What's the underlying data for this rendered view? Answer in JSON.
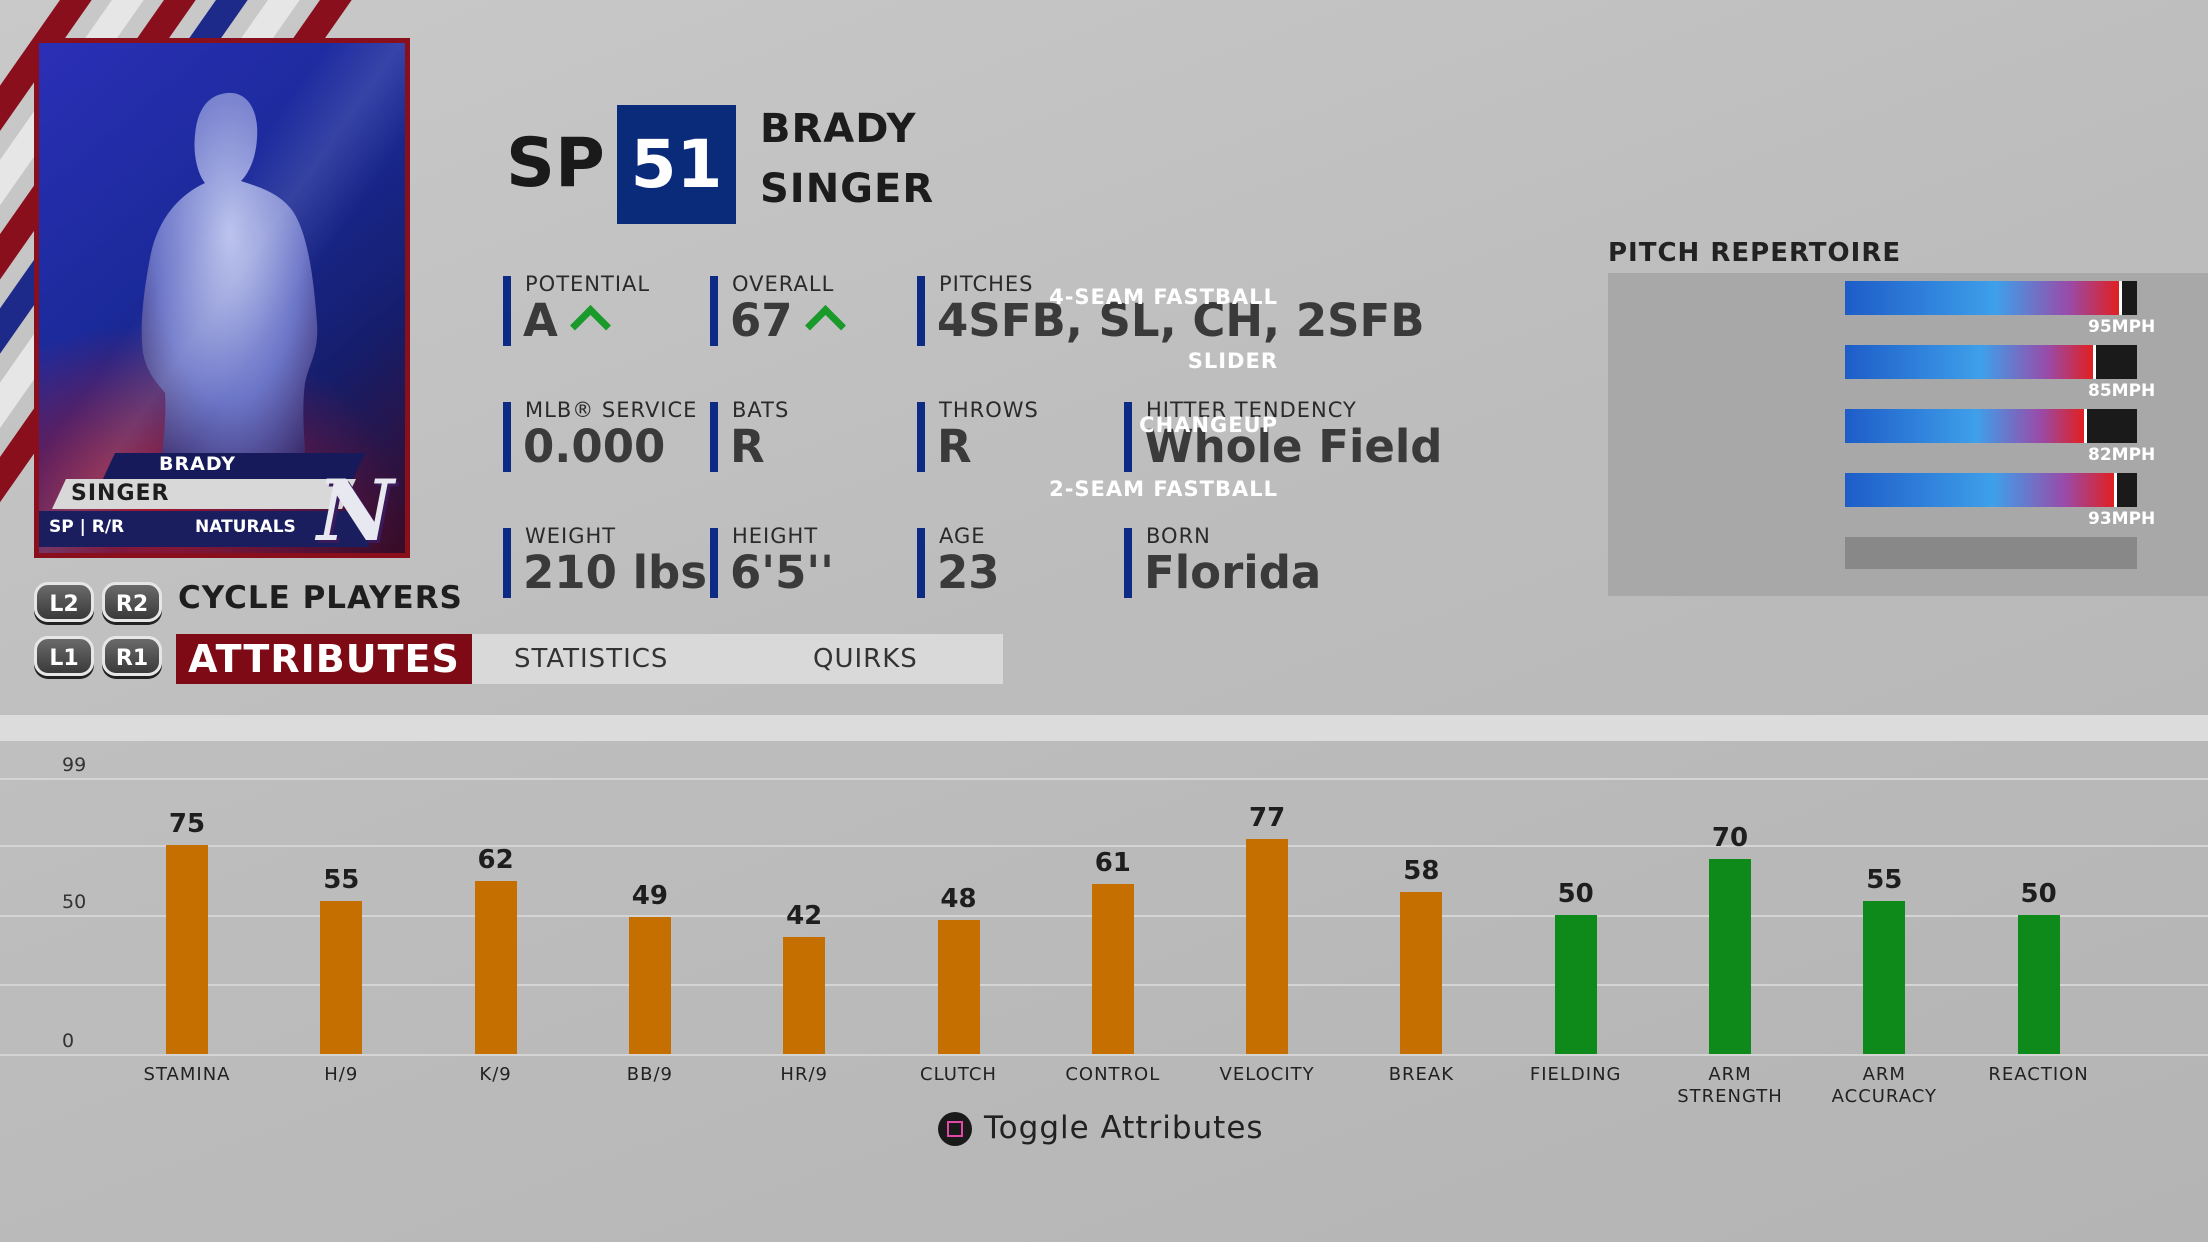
{
  "card": {
    "first_name": "BRADY",
    "last_name": "SINGER",
    "pos_bats_throws": "SP | R/R",
    "team": "NATURALS",
    "logo_letter": "N"
  },
  "controls": {
    "l2": "L2",
    "r2": "R2",
    "l1": "L1",
    "r1": "R1",
    "cycle_label": "CYCLE PLAYERS"
  },
  "tabs": [
    {
      "label": "ATTRIBUTES",
      "active": true
    },
    {
      "label": "STATISTICS",
      "active": false
    },
    {
      "label": "QUIRKS",
      "active": false
    }
  ],
  "header": {
    "position": "SP",
    "number": "51",
    "first_name": "BRADY",
    "last_name": "SINGER"
  },
  "info": {
    "potential": {
      "label": "POTENTIAL",
      "value": "A",
      "trend": "up"
    },
    "overall": {
      "label": "OVERALL",
      "value": "67",
      "trend": "up"
    },
    "pitches": {
      "label": "PITCHES",
      "value": "4SFB, SL, CH, 2SFB"
    },
    "service": {
      "label": "MLB® SERVICE",
      "value": "0.000"
    },
    "bats": {
      "label": "BATS",
      "value": "R"
    },
    "throws": {
      "label": "THROWS",
      "value": "R"
    },
    "tendency": {
      "label": "HITTER TENDENCY",
      "value": "Whole Field"
    },
    "weight": {
      "label": "WEIGHT",
      "value": "210 lbs"
    },
    "height": {
      "label": "HEIGHT",
      "value": "6'5''"
    },
    "age": {
      "label": "AGE",
      "value": "23"
    },
    "born": {
      "label": "BORN",
      "value": "Florida"
    }
  },
  "repertoire": {
    "title": "PITCH REPERTOIRE",
    "pitches": [
      {
        "name": "4-SEAM FASTBALL",
        "mph": "95MPH",
        "level": 0.94
      },
      {
        "name": "SLIDER",
        "mph": "85MPH",
        "level": 0.85
      },
      {
        "name": "CHANGEUP",
        "mph": "82MPH",
        "level": 0.82
      },
      {
        "name": "2-SEAM FASTBALL",
        "mph": "93MPH",
        "level": 0.92
      }
    ]
  },
  "chart_data": {
    "type": "bar",
    "ylim": [
      0,
      99
    ],
    "yticks": [
      "99",
      "50",
      "0"
    ],
    "categories": [
      "STAMINA",
      "H/9",
      "K/9",
      "BB/9",
      "HR/9",
      "CLUTCH",
      "CONTROL",
      "VELOCITY",
      "BREAK",
      "FIELDING",
      "ARM STRENGTH",
      "ARM ACCURACY",
      "REACTION"
    ],
    "label_lines": [
      [
        "STAMINA"
      ],
      [
        "H/9"
      ],
      [
        "K/9"
      ],
      [
        "BB/9"
      ],
      [
        "HR/9"
      ],
      [
        "CLUTCH"
      ],
      [
        "CONTROL"
      ],
      [
        "VELOCITY"
      ],
      [
        "BREAK"
      ],
      [
        "FIELDING"
      ],
      [
        "ARM",
        "STRENGTH"
      ],
      [
        "ARM",
        "ACCURACY"
      ],
      [
        "REACTION"
      ]
    ],
    "values": [
      75,
      55,
      62,
      49,
      42,
      48,
      61,
      77,
      58,
      50,
      70,
      55,
      50
    ],
    "groups": [
      "pitching",
      "pitching",
      "pitching",
      "pitching",
      "pitching",
      "pitching",
      "pitching",
      "pitching",
      "pitching",
      "fielding",
      "fielding",
      "fielding",
      "fielding"
    ],
    "colors": {
      "pitching": "#c46f00",
      "fielding": "#0e8a1a"
    },
    "grid": true
  },
  "footer": {
    "toggle_label": "Toggle Attributes",
    "toggle_icon": "square-button-icon"
  }
}
